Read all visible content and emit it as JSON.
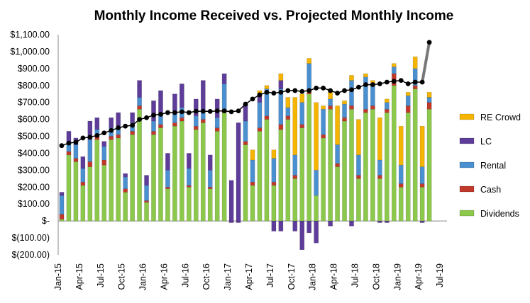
{
  "chart_data": {
    "type": "bar",
    "stacked": true,
    "title": "Monthly Income Received vs. Projected Monthly Income",
    "xlabel": "",
    "ylabel": "",
    "ylim": [
      -200,
      1100
    ],
    "y_ticks": [
      -200,
      -100,
      0,
      100,
      200,
      300,
      400,
      500,
      600,
      700,
      800,
      900,
      1000,
      1100
    ],
    "y_tick_labels": [
      "$(200.00)",
      "$(100.00)",
      "$-",
      "$100.00",
      "$200.00",
      "$300.00",
      "$400.00",
      "$500.00",
      "$600.00",
      "$700.00",
      "$800.00",
      "$900.00",
      "$1,000.00",
      "$1,100.00"
    ],
    "x_tick_labels": [
      "Jan-15",
      "Apr-15",
      "Jul-15",
      "Oct-15",
      "Jan-16",
      "Apr-16",
      "Jul-16",
      "Oct-16",
      "Jan-17",
      "Apr-17",
      "Jul-17",
      "Oct-17",
      "Jan-18",
      "Apr-18",
      "Jul-18",
      "Oct-18",
      "Jan-19",
      "Apr-19",
      "Jul-19"
    ],
    "grid": false,
    "legend_position": "right",
    "categories": [
      "Jan-15",
      "Feb-15",
      "Mar-15",
      "Apr-15",
      "May-15",
      "Jun-15",
      "Jul-15",
      "Aug-15",
      "Sep-15",
      "Oct-15",
      "Nov-15",
      "Dec-15",
      "Jan-16",
      "Feb-16",
      "Mar-16",
      "Apr-16",
      "May-16",
      "Jun-16",
      "Jul-16",
      "Aug-16",
      "Sep-16",
      "Oct-16",
      "Nov-16",
      "Dec-16",
      "Jan-17",
      "Feb-17",
      "Mar-17",
      "Apr-17",
      "May-17",
      "Jun-17",
      "Jul-17",
      "Aug-17",
      "Sep-17",
      "Oct-17",
      "Nov-17",
      "Dec-17",
      "Jan-18",
      "Feb-18",
      "Mar-18",
      "Apr-18",
      "May-18",
      "Jun-18",
      "Jul-18",
      "Aug-18",
      "Sep-18",
      "Oct-18",
      "Nov-18",
      "Dec-18",
      "Jan-19",
      "Feb-19",
      "Mar-19",
      "Apr-19",
      "May-19",
      "Jun-19",
      "Jul-19"
    ],
    "series": [
      {
        "name": "Dividends",
        "color": "#8CC84B",
        "values": [
          10,
          390,
          350,
          210,
          320,
          480,
          330,
          480,
          490,
          170,
          510,
          660,
          110,
          510,
          550,
          190,
          560,
          590,
          200,
          540,
          580,
          190,
          530,
          640,
          0,
          0,
          450,
          210,
          530,
          600,
          210,
          540,
          600,
          250,
          550,
          750,
          150,
          490,
          660,
          320,
          590,
          660,
          250,
          640,
          660,
          250,
          640,
          800,
          200,
          640,
          780,
          200,
          660,
          0,
          0
        ]
      },
      {
        "name": "Cash",
        "color": "#C0392B",
        "values": [
          30,
          20,
          20,
          20,
          30,
          20,
          30,
          20,
          20,
          20,
          20,
          20,
          10,
          20,
          20,
          10,
          20,
          20,
          10,
          20,
          20,
          10,
          20,
          20,
          0,
          0,
          20,
          20,
          20,
          20,
          20,
          30,
          20,
          20,
          20,
          20,
          0,
          20,
          20,
          20,
          20,
          20,
          20,
          20,
          20,
          20,
          20,
          70,
          20,
          40,
          20,
          20,
          40,
          0,
          0
        ]
      },
      {
        "name": "Rental",
        "color": "#4A90D0",
        "values": [
          110,
          60,
          80,
          80,
          130,
          40,
          80,
          50,
          50,
          70,
          50,
          50,
          90,
          60,
          60,
          100,
          60,
          60,
          100,
          60,
          60,
          100,
          60,
          150,
          0,
          0,
          120,
          130,
          150,
          160,
          140,
          210,
          50,
          120,
          130,
          160,
          150,
          150,
          40,
          110,
          80,
          150,
          120,
          190,
          120,
          90,
          40,
          40,
          110,
          60,
          100,
          100,
          30,
          0,
          0
        ]
      },
      {
        "name": "LC",
        "color": "#5E3C99",
        "values": [
          20,
          60,
          40,
          70,
          110,
          70,
          30,
          60,
          80,
          20,
          60,
          100,
          60,
          120,
          140,
          100,
          110,
          140,
          90,
          100,
          170,
          90,
          110,
          60,
          240,
          580,
          100,
          0,
          50,
          0,
          0,
          50,
          0,
          0,
          0,
          0,
          0,
          0,
          0,
          0,
          0,
          0,
          0,
          0,
          0,
          0,
          0,
          0,
          0,
          0,
          0,
          0,
          0,
          0,
          0
        ]
      },
      {
        "name": "RE Crowd",
        "color": "#F5B400",
        "values": [
          0,
          0,
          0,
          0,
          0,
          0,
          0,
          0,
          0,
          0,
          0,
          0,
          0,
          0,
          0,
          0,
          0,
          0,
          0,
          0,
          0,
          0,
          0,
          0,
          0,
          0,
          0,
          60,
          20,
          20,
          50,
          40,
          60,
          340,
          50,
          30,
          400,
          20,
          50,
          230,
          20,
          30,
          210,
          20,
          30,
          250,
          20,
          20,
          230,
          20,
          70,
          240,
          30,
          0,
          0
        ]
      }
    ],
    "negative_series": {
      "name": "LC",
      "color": "#5E3C99",
      "values": [
        0,
        0,
        0,
        0,
        0,
        0,
        0,
        0,
        0,
        0,
        0,
        0,
        0,
        0,
        0,
        0,
        0,
        0,
        0,
        0,
        0,
        0,
        0,
        0,
        -10,
        -10,
        0,
        0,
        0,
        0,
        -60,
        -60,
        0,
        -60,
        -170,
        -70,
        -130,
        0,
        -30,
        0,
        0,
        -30,
        0,
        0,
        0,
        -10,
        -10,
        0,
        0,
        0,
        0,
        -10,
        0,
        0,
        0
      ]
    },
    "projected_line": {
      "name": "Projected Monthly Income",
      "color": "#000000",
      "values": [
        445,
        460,
        465,
        490,
        495,
        505,
        520,
        535,
        550,
        560,
        565,
        600,
        610,
        625,
        630,
        640,
        640,
        645,
        640,
        648,
        648,
        647,
        650,
        650,
        645,
        650,
        690,
        720,
        745,
        760,
        755,
        760,
        770,
        770,
        765,
        770,
        785,
        785,
        770,
        755,
        770,
        775,
        790,
        805,
        805,
        810,
        820,
        825,
        830,
        810,
        820,
        820,
        1055
      ]
    }
  }
}
